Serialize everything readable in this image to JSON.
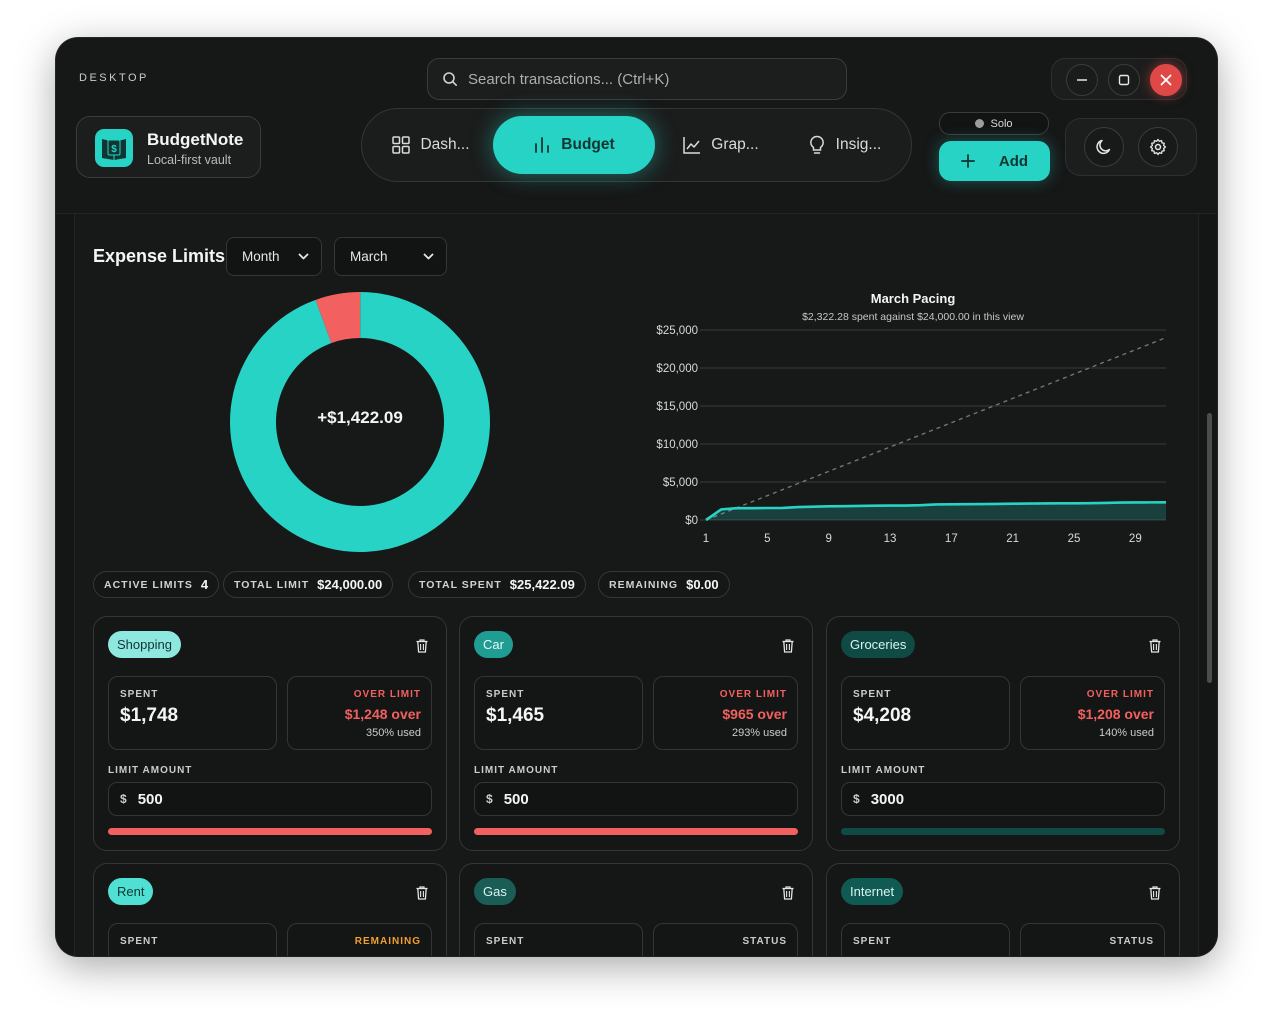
{
  "window": {
    "label": "DESKTOP"
  },
  "search": {
    "placeholder": "Search transactions... (Ctrl+K)"
  },
  "brand": {
    "name": "BudgetNote",
    "subtitle": "Local-first vault"
  },
  "tabs": [
    {
      "label": "Dash...",
      "icon": "grid-icon",
      "active": false
    },
    {
      "label": "Budget",
      "icon": "bar-chart-icon",
      "active": true
    },
    {
      "label": "Grap...",
      "icon": "line-chart-icon",
      "active": false
    },
    {
      "label": "Insig...",
      "icon": "lightbulb-icon",
      "active": false
    }
  ],
  "mode_badge": "Solo",
  "add_button": "Add",
  "colors": {
    "accent": "#27d3c5",
    "danger": "#f26060",
    "warning": "#f0a030",
    "background": "#141515"
  },
  "expense_limits": {
    "title": "Expense Limits",
    "period_select": "Month",
    "month_select": "March",
    "donut_center": "+$1,422.09",
    "donut": {
      "segments": [
        {
          "label": "over",
          "color": "#f26060",
          "fraction": 0.056
        },
        {
          "label": "spent",
          "color": "#27d3c5",
          "fraction": 0.944
        }
      ]
    },
    "stats": [
      {
        "label": "ACTIVE LIMITS",
        "value": "4"
      },
      {
        "label": "TOTAL LIMIT",
        "value": "$24,000.00"
      },
      {
        "label": "TOTAL SPENT",
        "value": "$25,422.09"
      },
      {
        "label": "REMAINING",
        "value": "$0.00"
      }
    ]
  },
  "chart_data": {
    "type": "area",
    "title": "March Pacing",
    "subtitle": "$2,322.28 spent against $24,000.00 in this view",
    "x": [
      1,
      2,
      3,
      4,
      5,
      6,
      7,
      8,
      9,
      10,
      11,
      12,
      13,
      14,
      15,
      16,
      17,
      18,
      19,
      20,
      21,
      22,
      23,
      24,
      25,
      26,
      27,
      28,
      29,
      30,
      31
    ],
    "series": [
      {
        "values": [
          0,
          1400,
          1550,
          1550,
          1580,
          1590,
          1700,
          1750,
          1800,
          1820,
          1850,
          1880,
          1900,
          1900,
          1950,
          2050,
          2060,
          2080,
          2100,
          2120,
          2150,
          2160,
          2180,
          2190,
          2200,
          2210,
          2250,
          2300,
          2310,
          2320,
          2322.28
        ],
        "color": "#27d3c5"
      },
      {
        "values": [
          0,
          800,
          1600,
          2400,
          3200,
          4000,
          4800,
          5600,
          6400,
          7200,
          8000,
          8800,
          9600,
          10400,
          11200,
          12000,
          12800,
          13600,
          14400,
          15200,
          16000,
          16800,
          17600,
          18400,
          19200,
          20000,
          20800,
          21600,
          22400,
          23200,
          24000
        ],
        "color": "#707575",
        "dashed": true
      }
    ],
    "xticks": [
      1,
      5,
      9,
      13,
      17,
      21,
      25,
      29
    ],
    "yticks": [
      "$0",
      "$5,000",
      "$10,000",
      "$15,000",
      "$20,000",
      "$25,000"
    ],
    "ylim": [
      0,
      25000
    ],
    "grid": true
  },
  "cards": [
    {
      "category": "Shopping",
      "spent_label": "SPENT",
      "spent": "$1,748",
      "status_label": "OVER LIMIT",
      "status_value": "$1,248 over",
      "status_detail": "350% used",
      "limit_label": "LIMIT AMOUNT",
      "currency": "$",
      "limit": "500",
      "progress": 1.0
    },
    {
      "category": "Car",
      "spent_label": "SPENT",
      "spent": "$1,465",
      "status_label": "OVER LIMIT",
      "status_value": "$965 over",
      "status_detail": "293% used",
      "limit_label": "LIMIT AMOUNT",
      "currency": "$",
      "limit": "500",
      "progress": 1.0
    },
    {
      "category": "Groceries",
      "spent_label": "SPENT",
      "spent": "$4,208",
      "status_label": "OVER LIMIT",
      "status_value": "$1,208 over",
      "status_detail": "140% used",
      "limit_label": "LIMIT AMOUNT",
      "currency": "$",
      "limit": "3000",
      "progress": 1.0
    },
    {
      "category": "Rent",
      "spent_label": "SPENT",
      "status_label": "REMAINING"
    },
    {
      "category": "Gas",
      "spent_label": "SPENT",
      "status_label": "STATUS"
    },
    {
      "category": "Internet",
      "spent_label": "SPENT",
      "status_label": "STATUS"
    }
  ]
}
